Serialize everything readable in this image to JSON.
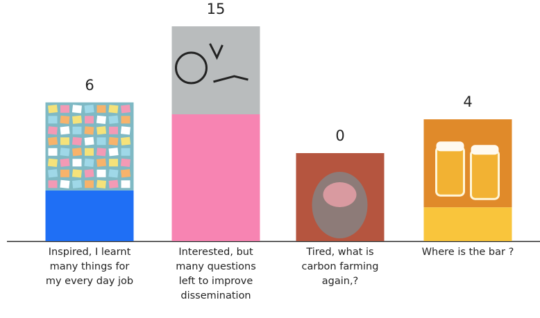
{
  "chart_data": {
    "type": "bar",
    "categories": [
      "Inspired, I learnt many things for my every day job",
      "Interested, but many questions left to improve dissemination",
      "Tired, what is carbon farming again,?",
      "Where is the bar ?"
    ],
    "values": [
      6,
      15,
      0,
      4
    ],
    "colors": [
      "#1f6ff5",
      "#f784b2",
      null,
      "#f9c53c"
    ]
  }
}
